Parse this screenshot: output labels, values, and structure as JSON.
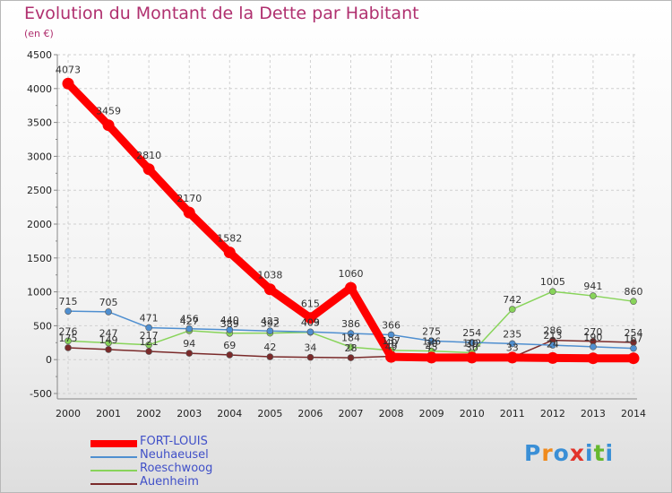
{
  "header": {
    "title": "Evolution du Montant de la Dette par Habitant",
    "subtitle": "(en €)"
  },
  "brand": {
    "logo_text": "Proxiti",
    "logo_colors": [
      "#3a8fd6",
      "#f08a1c",
      "#3a8fd6",
      "#e2332a",
      "#3a8fd6",
      "#66b82e",
      "#3a8fd6"
    ]
  },
  "chart_data": {
    "type": "line",
    "title": "Evolution du Montant de la Dette par Habitant",
    "subtitle": "(en €)",
    "xlabel": "",
    "ylabel": "",
    "ylim": [
      -500,
      4500
    ],
    "y_ticks": [
      "-500",
      "0",
      "500",
      "1000",
      "1500",
      "2000",
      "2500",
      "3000",
      "3500",
      "4000",
      "4500"
    ],
    "categories": [
      "2000",
      "2001",
      "2002",
      "2003",
      "2004",
      "2005",
      "2006",
      "2007",
      "2008",
      "2009",
      "2010",
      "2011",
      "2012",
      "2013",
      "2014"
    ],
    "grid": true,
    "legend_position": "bottom-left",
    "series": [
      {
        "name": "FORT-LOUIS",
        "color": "#ff0000",
        "values": [
          4073,
          3459,
          2810,
          2170,
          1582,
          1038,
          615,
          1060,
          40,
          30,
          30,
          30,
          24,
          20,
          20
        ],
        "labels": [
          "4073",
          "3459",
          "2810",
          "2170",
          "1582",
          "1038",
          "615",
          "1060",
          "40",
          "30",
          "30",
          "",
          "24",
          "",
          ""
        ]
      },
      {
        "name": "Neuhaeusel",
        "color": "#4f8fd0",
        "values": [
          715,
          705,
          471,
          456,
          440,
          423,
          409,
          386,
          366,
          275,
          254,
          235,
          213,
          190,
          167
        ],
        "labels": [
          "715",
          "705",
          "471",
          "456",
          "440",
          "423",
          "409",
          "386",
          "366",
          "275",
          "254",
          "235",
          "213",
          "190",
          "167"
        ]
      },
      {
        "name": "Roeschwoog",
        "color": "#88d45a",
        "values": [
          276,
          247,
          217,
          427,
          389,
          392,
          403,
          184,
          137,
          126,
          102,
          742,
          1005,
          941,
          860
        ],
        "labels": [
          "276",
          "247",
          "217",
          "427",
          "389",
          "392",
          "403",
          "184",
          "137",
          "126",
          "102",
          "742",
          "1005",
          "941",
          "860"
        ]
      },
      {
        "name": "Auenheim",
        "color": "#7a2a2a",
        "values": [
          175,
          149,
          121,
          94,
          69,
          42,
          34,
          28,
          49,
          45,
          36,
          33,
          286,
          270,
          254
        ],
        "labels": [
          "175",
          "149",
          "121",
          "94",
          "69",
          "42",
          "34",
          "28",
          "49",
          "45",
          "36",
          "33",
          "286",
          "270",
          "254"
        ]
      }
    ]
  }
}
